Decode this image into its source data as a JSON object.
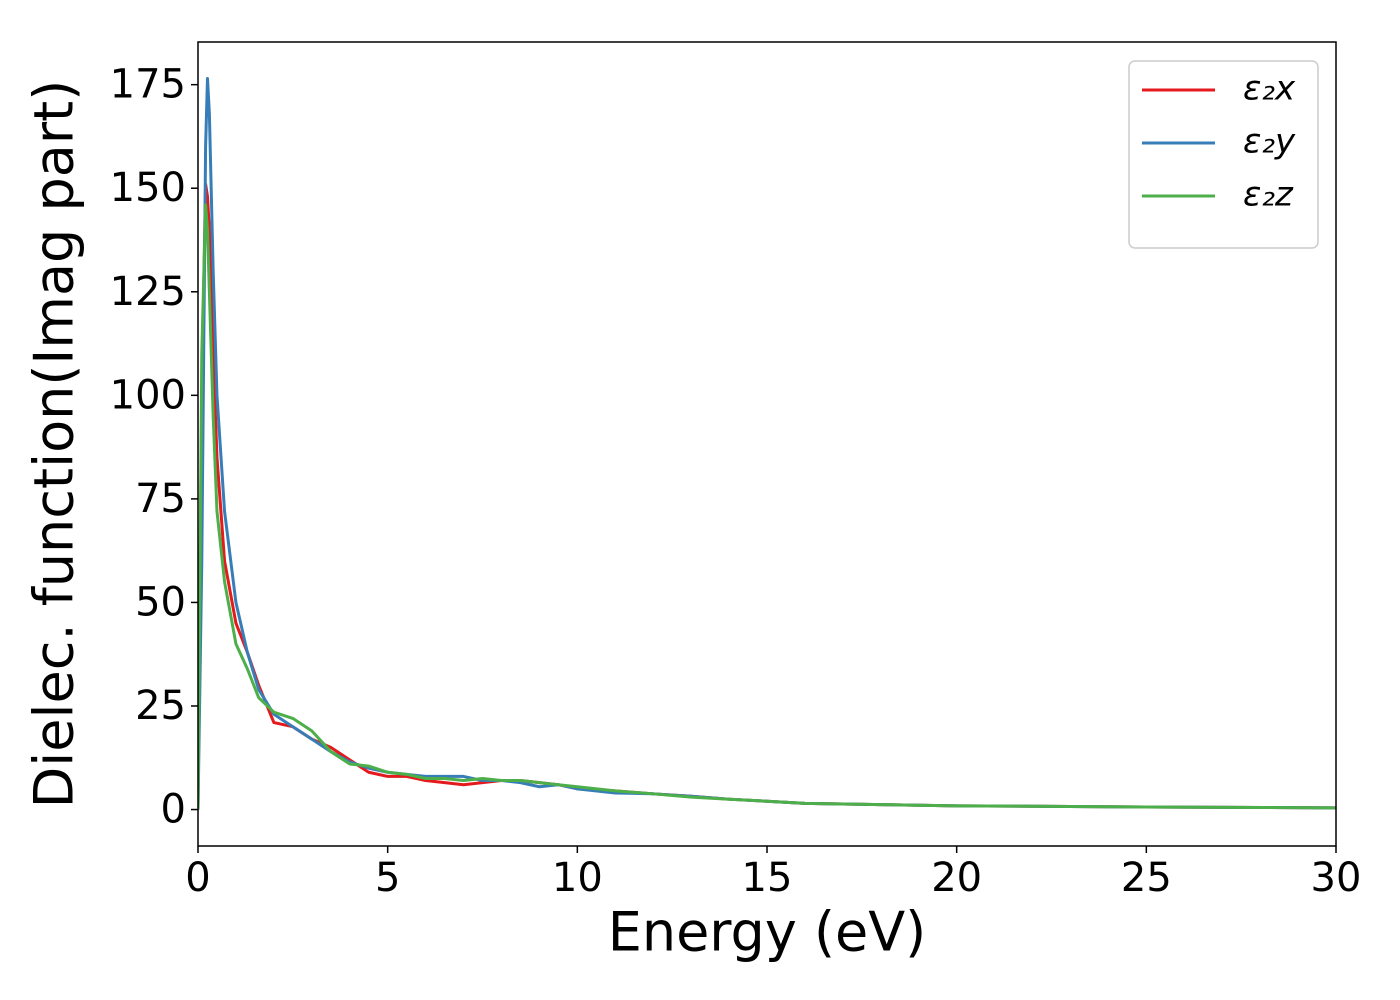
{
  "chart_data": {
    "type": "line",
    "x_label": "Energy (eV)",
    "y_label": "Dielec. function(Imag part)",
    "x": [
      0,
      0.1,
      0.2,
      0.25,
      0.3,
      0.4,
      0.5,
      0.7,
      1.0,
      1.3,
      1.6,
      2.0,
      2.5,
      3.0,
      3.5,
      4.0,
      4.5,
      5,
      5.5,
      6,
      6.5,
      7,
      7.5,
      8,
      8.5,
      9,
      9.5,
      10,
      11,
      12,
      13,
      14,
      15,
      16,
      18,
      20,
      22,
      25,
      28,
      30
    ],
    "series": [
      {
        "name": "ε₂x",
        "color": "#e41a1c",
        "values": [
          0,
          100,
          151,
          148,
          140,
          110,
          85,
          60,
          45,
          38,
          30,
          21,
          20,
          17,
          15,
          12,
          9,
          8,
          8,
          7,
          6.5,
          6,
          6.5,
          7,
          7,
          6.5,
          6,
          5,
          4.5,
          3.8,
          3.2,
          2.5,
          2,
          1.5,
          1.2,
          0.9,
          0.8,
          0.6,
          0.5,
          0.4
        ]
      },
      {
        "name": "ε₂y",
        "color": "#377eb8",
        "values": [
          0,
          60,
          160,
          176.5,
          168,
          130,
          100,
          72,
          50,
          38,
          29,
          23,
          20,
          17,
          14,
          11.5,
          10,
          9,
          8.5,
          8,
          8,
          8,
          7,
          7,
          6.5,
          5.5,
          6,
          5,
          4,
          3.8,
          3.2,
          2.5,
          2,
          1.5,
          1.2,
          0.9,
          0.8,
          0.6,
          0.5,
          0.4
        ]
      },
      {
        "name": "ε₂z",
        "color": "#4daf4a",
        "values": [
          0,
          110,
          146,
          140,
          125,
          95,
          72,
          55,
          40,
          34,
          27,
          23.5,
          22,
          19,
          14,
          11,
          10.5,
          9,
          8.5,
          7.5,
          7.5,
          7,
          7.5,
          7,
          7,
          6.5,
          6,
          5.5,
          4.5,
          3.8,
          3,
          2.5,
          2,
          1.5,
          1.2,
          0.9,
          0.8,
          0.6,
          0.5,
          0.4
        ]
      }
    ],
    "xlim": [
      0,
      30
    ],
    "xticks": [
      0,
      5,
      10,
      15,
      20,
      25,
      30
    ],
    "ylim": [
      -8.8,
      185.3
    ],
    "yticks": [
      0,
      25,
      50,
      75,
      100,
      125,
      150,
      175
    ],
    "grid": false,
    "legend": "upper right"
  }
}
